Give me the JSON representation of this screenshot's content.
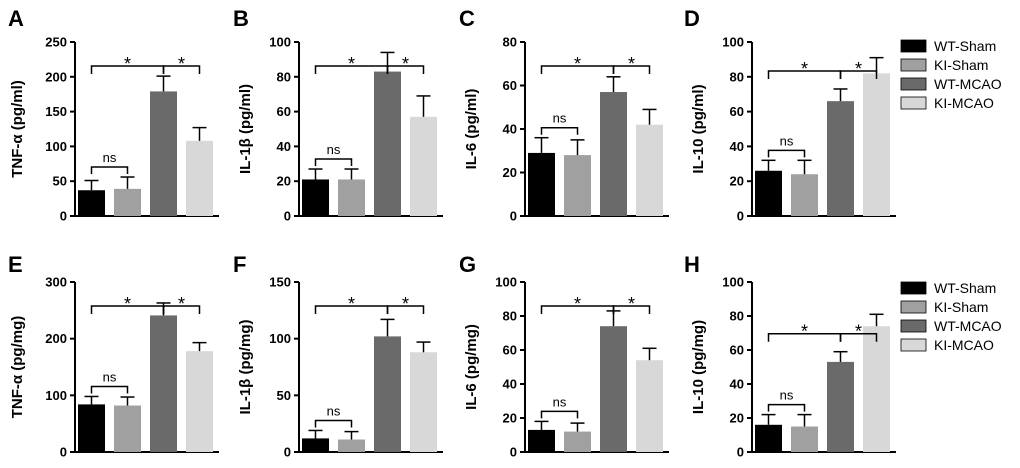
{
  "legend": [
    {
      "label": "WT-Sham",
      "color": "#000000"
    },
    {
      "label": "KI-Sham",
      "color": "#a0a0a0"
    },
    {
      "label": "WT-MCAO",
      "color": "#6a6a6a"
    },
    {
      "label": "KI-MCAO",
      "color": "#d8d8d8"
    }
  ],
  "chart_data": [
    {
      "panel": "A",
      "type": "bar",
      "ylabel": "TNF-α (pg/ml)",
      "ylim": [
        0,
        250
      ],
      "ticks": [
        0,
        50,
        100,
        150,
        200,
        250
      ],
      "categories": [
        "WT-Sham",
        "KI-Sham",
        "WT-MCAO",
        "KI-MCAO"
      ],
      "values": [
        37,
        39,
        179,
        108
      ],
      "errors": [
        14,
        17,
        22,
        19
      ],
      "ns_label": "ns",
      "sig_label": "*"
    },
    {
      "panel": "B",
      "type": "bar",
      "ylabel": "IL-1β (pg/ml)",
      "ylim": [
        0,
        100
      ],
      "ticks": [
        0,
        20,
        40,
        60,
        80,
        100
      ],
      "categories": [
        "WT-Sham",
        "KI-Sham",
        "WT-MCAO",
        "KI-MCAO"
      ],
      "values": [
        21,
        21,
        83,
        57
      ],
      "errors": [
        6,
        6,
        11,
        12
      ],
      "ns_label": "ns",
      "sig_label": "*"
    },
    {
      "panel": "C",
      "type": "bar",
      "ylabel": "IL-6 (pg/ml)",
      "ylim": [
        0,
        80
      ],
      "ticks": [
        0,
        20,
        40,
        60,
        80
      ],
      "categories": [
        "WT-Sham",
        "KI-Sham",
        "WT-MCAO",
        "KI-MCAO"
      ],
      "values": [
        29,
        28,
        57,
        42
      ],
      "errors": [
        7,
        7,
        7,
        7
      ],
      "ns_label": "ns",
      "sig_label": "*"
    },
    {
      "panel": "D",
      "type": "bar",
      "ylabel": "IL-10 (pg/ml)",
      "ylim": [
        0,
        100
      ],
      "ticks": [
        0,
        20,
        40,
        60,
        80,
        100
      ],
      "categories": [
        "WT-Sham",
        "KI-Sham",
        "WT-MCAO",
        "KI-MCAO"
      ],
      "values": [
        26,
        24,
        66,
        82
      ],
      "errors": [
        6,
        8,
        7,
        9
      ],
      "ns_label": "ns",
      "sig_label": "*"
    },
    {
      "panel": "E",
      "type": "bar",
      "ylabel": "TNF-α (pg/mg)",
      "ylim": [
        0,
        300
      ],
      "ticks": [
        0,
        100,
        200,
        300
      ],
      "categories": [
        "WT-Sham",
        "KI-Sham",
        "WT-MCAO",
        "KI-MCAO"
      ],
      "values": [
        84,
        82,
        241,
        178
      ],
      "errors": [
        14,
        15,
        22,
        15
      ],
      "ns_label": "ns",
      "sig_label": "*"
    },
    {
      "panel": "F",
      "type": "bar",
      "ylabel": "IL-1β (pg/mg)",
      "ylim": [
        0,
        150
      ],
      "ticks": [
        0,
        50,
        100,
        150
      ],
      "categories": [
        "WT-Sham",
        "KI-Sham",
        "WT-MCAO",
        "KI-MCAO"
      ],
      "values": [
        12,
        11,
        102,
        88
      ],
      "errors": [
        7,
        7,
        15,
        9
      ],
      "ns_label": "ns",
      "sig_label": "*"
    },
    {
      "panel": "G",
      "type": "bar",
      "ylabel": "IL-6 (pg/mg)",
      "ylim": [
        0,
        100
      ],
      "ticks": [
        0,
        20,
        40,
        60,
        80,
        100
      ],
      "categories": [
        "WT-Sham",
        "KI-Sham",
        "WT-MCAO",
        "KI-MCAO"
      ],
      "values": [
        13,
        12,
        74,
        54
      ],
      "errors": [
        5,
        5,
        9,
        7
      ],
      "ns_label": "ns",
      "sig_label": "*"
    },
    {
      "panel": "H",
      "type": "bar",
      "ylabel": "IL-10 (pg/mg)",
      "ylim": [
        0,
        100
      ],
      "ticks": [
        0,
        20,
        40,
        60,
        80,
        100
      ],
      "categories": [
        "WT-Sham",
        "KI-Sham",
        "WT-MCAO",
        "KI-MCAO"
      ],
      "values": [
        16,
        15,
        53,
        74
      ],
      "errors": [
        6,
        7,
        6,
        7
      ],
      "ns_label": "ns",
      "sig_label": "*"
    }
  ]
}
